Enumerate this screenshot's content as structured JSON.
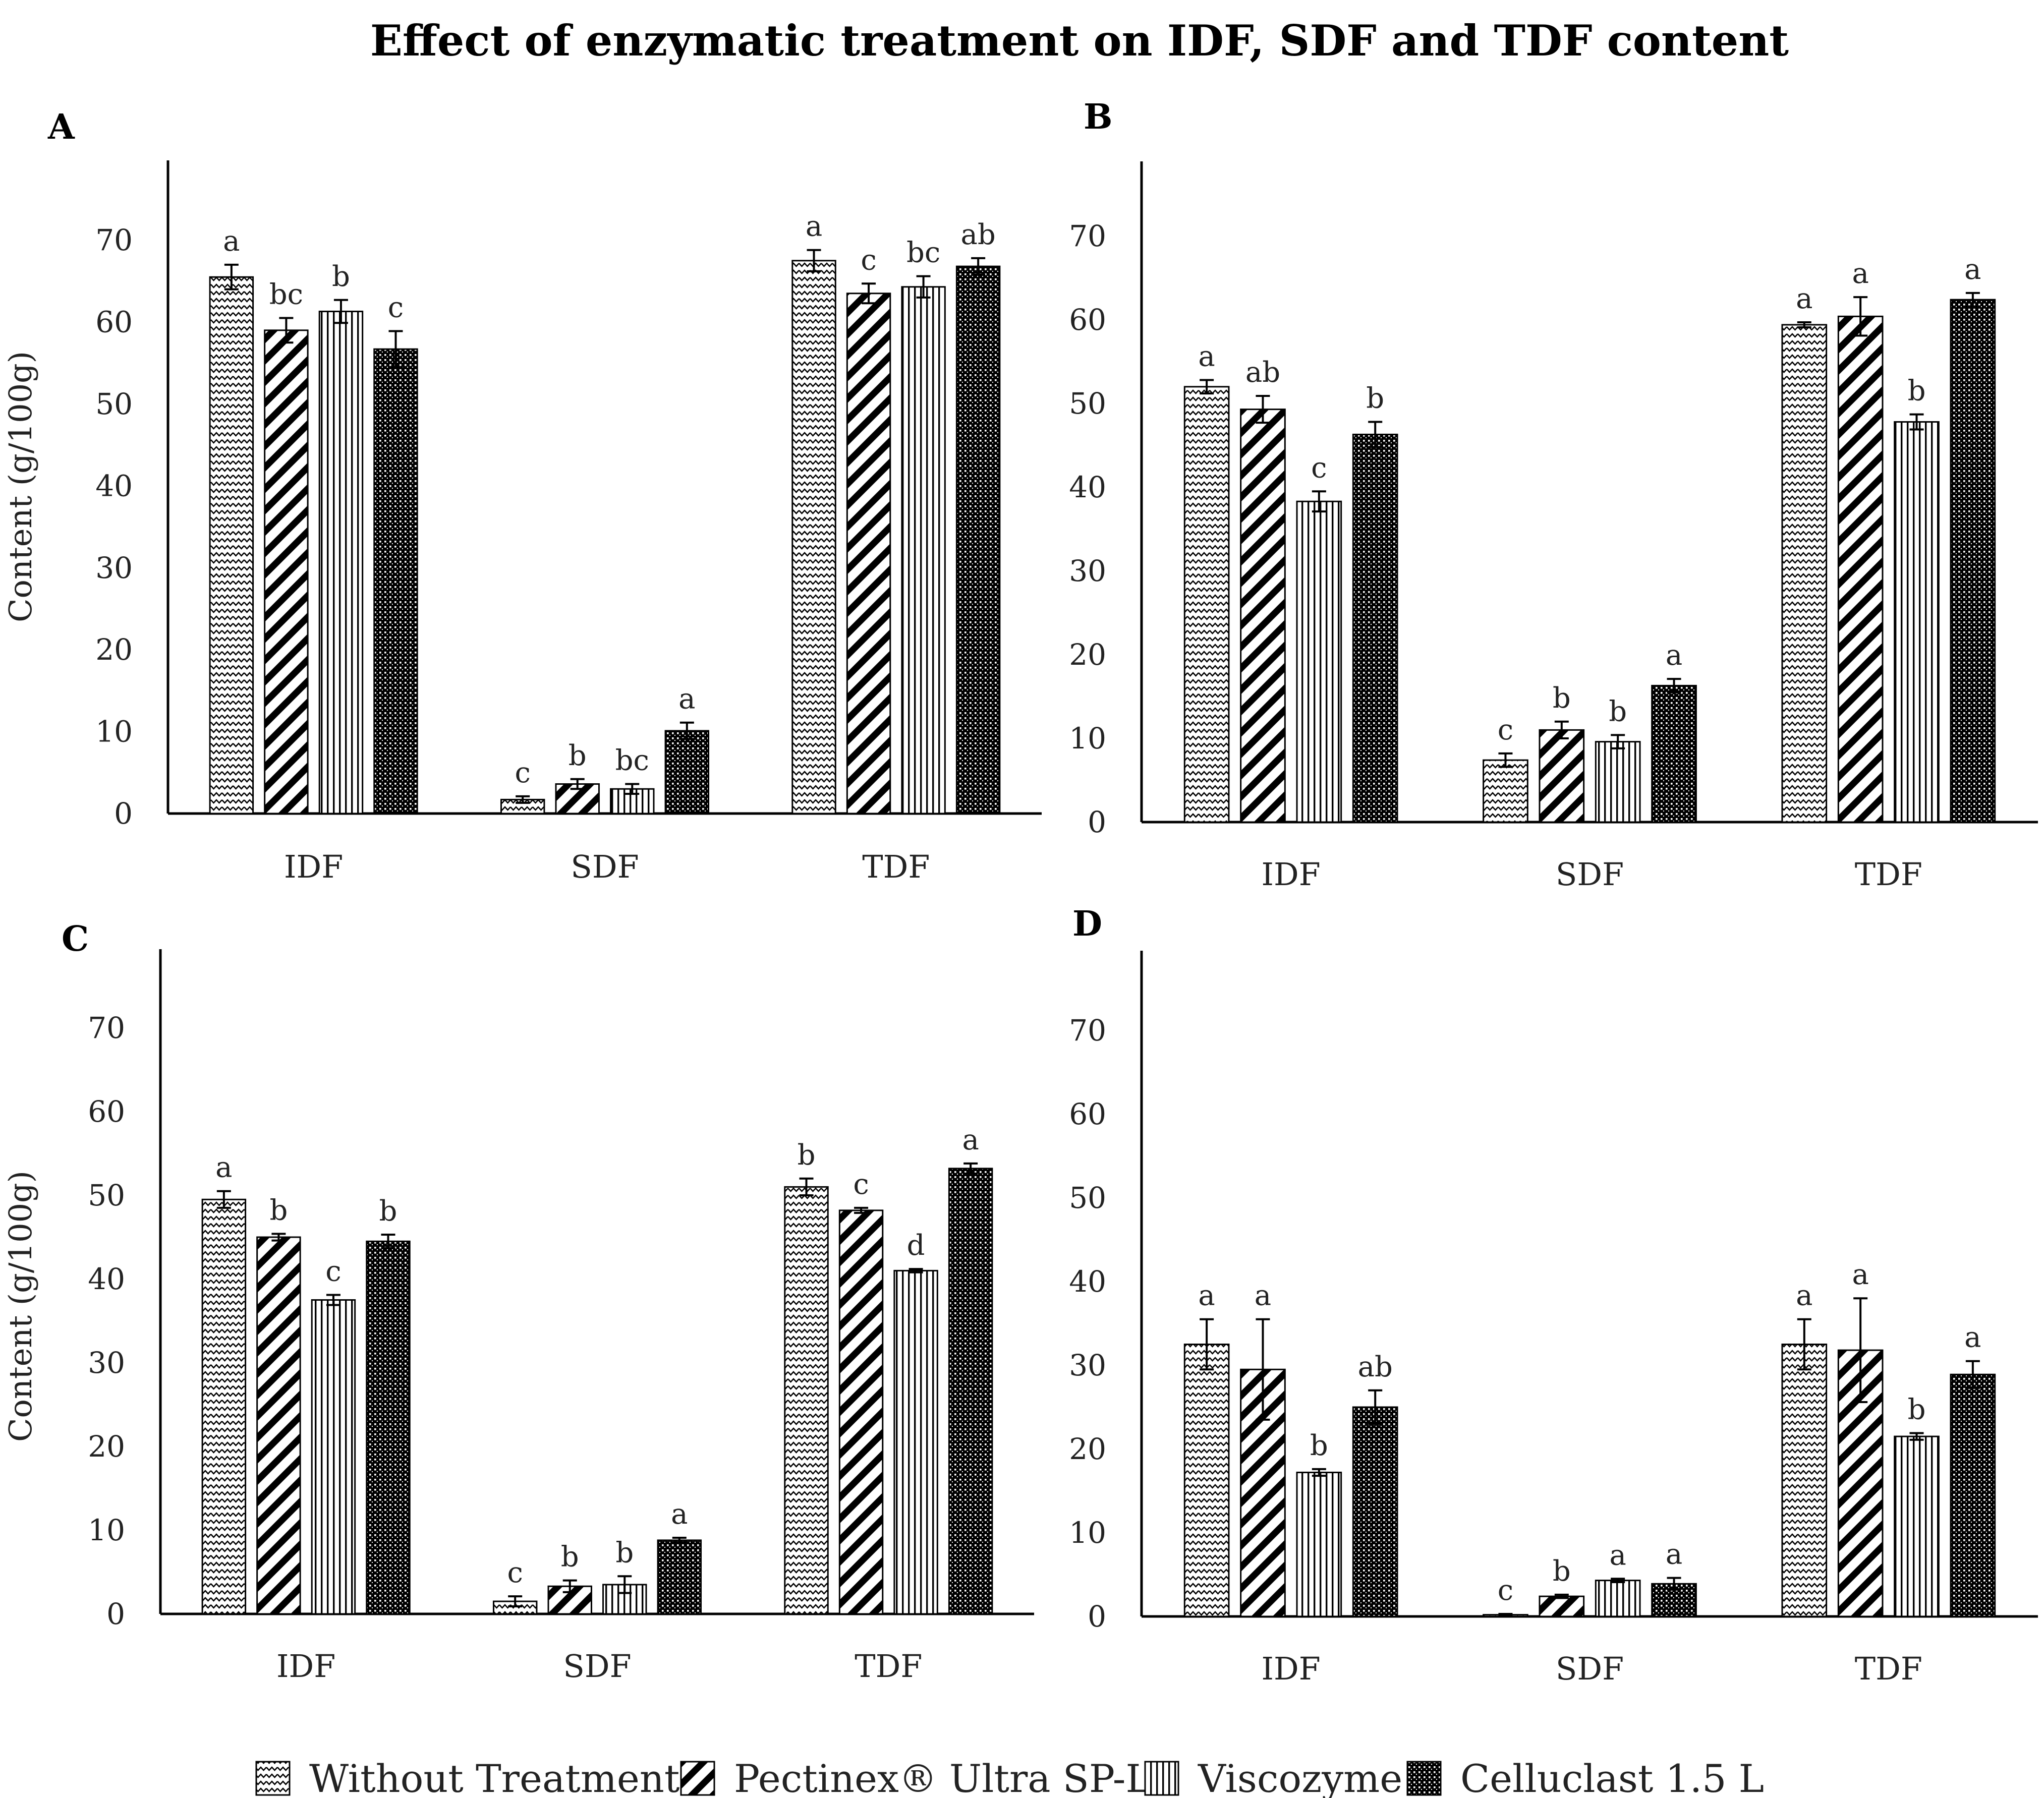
{
  "chart_data": {
    "type": "bar",
    "title": "Effect of enzymatic treatment on IDF, SDF and TDF content",
    "ylabel": "Content (g/100g)",
    "ylim": [
      0,
      80
    ],
    "yticks": [
      0,
      10,
      20,
      30,
      40,
      50,
      60,
      70
    ],
    "categories": [
      "IDF",
      "SDF",
      "TDF"
    ],
    "legend": [
      {
        "name": "Without Treatment",
        "pattern": "zigzag"
      },
      {
        "name": "Pectinex® Ultra SP-L",
        "pattern": "diagonal"
      },
      {
        "name": "Viscozyme L",
        "pattern": "vertical"
      },
      {
        "name": "Celluclast 1.5 L",
        "pattern": "dense"
      }
    ],
    "panels": [
      {
        "label": "A",
        "series": [
          {
            "name": "Without Treatment",
            "values": [
              65.5,
              1.7,
              67.5
            ],
            "errors": [
              1.5,
              0.4,
              1.3
            ],
            "letters": [
              "a",
              "c",
              "a"
            ]
          },
          {
            "name": "Pectinex® Ultra SP-L",
            "values": [
              59.0,
              3.6,
              63.5
            ],
            "errors": [
              1.5,
              0.6,
              1.2
            ],
            "letters": [
              "bc",
              "b",
              "c"
            ]
          },
          {
            "name": "Viscozyme L",
            "values": [
              61.3,
              3.0,
              64.3
            ],
            "errors": [
              1.4,
              0.6,
              1.3
            ],
            "letters": [
              "b",
              "bc",
              "bc"
            ]
          },
          {
            "name": "Celluclast 1.5 L",
            "values": [
              56.7,
              10.1,
              66.8
            ],
            "errors": [
              2.2,
              1.0,
              1.0
            ],
            "letters": [
              "c",
              "a",
              "ab"
            ]
          }
        ]
      },
      {
        "label": "B",
        "series": [
          {
            "name": "Without Treatment",
            "values": [
              52.0,
              7.4,
              59.4
            ],
            "errors": [
              0.8,
              0.8,
              0.3
            ],
            "letters": [
              "a",
              "c",
              "a"
            ]
          },
          {
            "name": "Pectinex® Ultra SP-L",
            "values": [
              49.3,
              11.0,
              60.4
            ],
            "errors": [
              1.6,
              1.0,
              2.3
            ],
            "letters": [
              "ab",
              "b",
              "a"
            ]
          },
          {
            "name": "Viscozyme L",
            "values": [
              38.3,
              9.6,
              47.8
            ],
            "errors": [
              1.2,
              0.8,
              0.9
            ],
            "letters": [
              "c",
              "b",
              "b"
            ]
          },
          {
            "name": "Celluclast 1.5 L",
            "values": [
              46.3,
              16.3,
              62.4
            ],
            "errors": [
              1.5,
              0.8,
              0.8
            ],
            "letters": [
              "b",
              "a",
              "a"
            ]
          }
        ]
      },
      {
        "label": "C",
        "series": [
          {
            "name": "Without Treatment",
            "values": [
              49.5,
              1.5,
              51.0
            ],
            "errors": [
              1.0,
              0.6,
              1.0
            ],
            "letters": [
              "a",
              "c",
              "b"
            ]
          },
          {
            "name": "Pectinex® Ultra SP-L",
            "values": [
              45.0,
              3.3,
              48.2
            ],
            "errors": [
              0.4,
              0.7,
              0.3
            ],
            "letters": [
              "b",
              "b",
              "c"
            ]
          },
          {
            "name": "Viscozyme L",
            "values": [
              37.5,
              3.5,
              41.0
            ],
            "errors": [
              0.6,
              1.0,
              0.2
            ],
            "letters": [
              "c",
              "b",
              "d"
            ]
          },
          {
            "name": "Celluclast 1.5 L",
            "values": [
              44.5,
              8.8,
              53.2
            ],
            "errors": [
              0.8,
              0.3,
              0.6
            ],
            "letters": [
              "b",
              "a",
              "a"
            ]
          }
        ]
      },
      {
        "label": "D",
        "series": [
          {
            "name": "Without Treatment",
            "values": [
              32.5,
              0.2,
              32.5
            ],
            "errors": [
              3.0,
              0.1,
              3.0
            ],
            "letters": [
              "a",
              "c",
              "a"
            ]
          },
          {
            "name": "Pectinex® Ultra SP-L",
            "values": [
              29.5,
              2.4,
              31.8
            ],
            "errors": [
              6.0,
              0.2,
              6.2
            ],
            "letters": [
              "a",
              "b",
              "a"
            ]
          },
          {
            "name": "Viscozyme L",
            "values": [
              17.2,
              4.3,
              21.5
            ],
            "errors": [
              0.4,
              0.2,
              0.4
            ],
            "letters": [
              "b",
              "a",
              "b"
            ]
          },
          {
            "name": "Celluclast 1.5 L",
            "values": [
              25.0,
              3.9,
              28.9
            ],
            "errors": [
              2.0,
              0.7,
              1.6
            ],
            "letters": [
              "ab",
              "a",
              "a"
            ]
          }
        ]
      }
    ]
  },
  "colors": {
    "axis": "#000000",
    "bar_outline": "#000000",
    "pattern_fill": "#000000",
    "background": "#ffffff"
  }
}
